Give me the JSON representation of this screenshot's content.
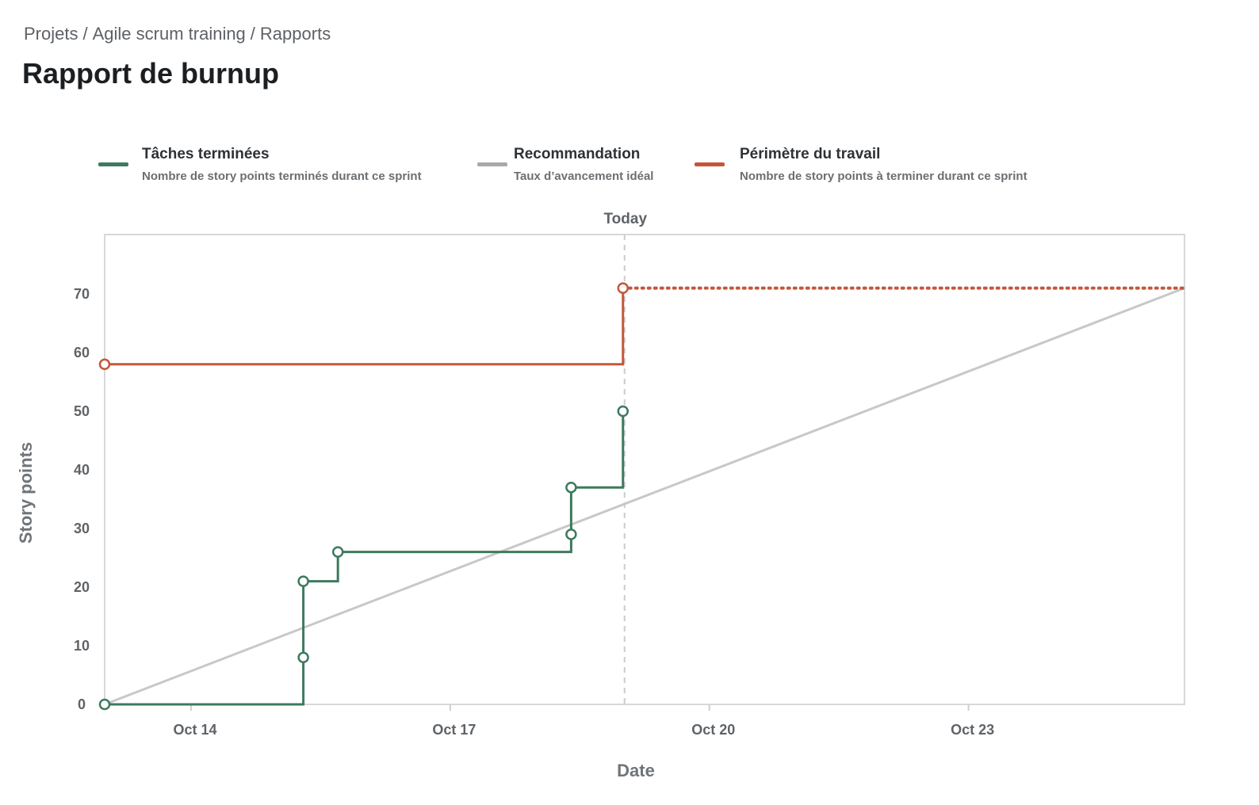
{
  "breadcrumb": {
    "items": [
      "Projets",
      "Agile scrum training",
      "Rapports"
    ],
    "separator": "/"
  },
  "page_title": "Rapport de burnup",
  "legend": [
    {
      "title": "Tâches terminées",
      "description": "Nombre de story points terminés durant ce sprint",
      "color": "#3d7a5e"
    },
    {
      "title": "Recommandation",
      "description": "Taux d’avancement idéal",
      "color": "#a9a9a9"
    },
    {
      "title": "Périmètre du travail",
      "description": "Nombre de story points à terminer durant ce sprint",
      "color": "#c4573b"
    }
  ],
  "chart_data": {
    "type": "line",
    "title": "",
    "xlabel": "Date",
    "ylabel": "Story points",
    "x_unit": "days in October",
    "xlim": [
      13,
      25.5
    ],
    "ylim": [
      0,
      80
    ],
    "yticks": [
      0,
      10,
      20,
      30,
      40,
      50,
      60,
      70
    ],
    "xticks": [
      {
        "value": 14,
        "label": "Oct 14"
      },
      {
        "value": 17,
        "label": "Oct 17"
      },
      {
        "value": 20,
        "label": "Oct 20"
      },
      {
        "value": 23,
        "label": "Oct 23"
      }
    ],
    "today": {
      "x": 19,
      "label": "Today"
    },
    "grid": false,
    "series": [
      {
        "name": "Tâches terminées",
        "style": "step",
        "color": "#3d7a5e",
        "points": [
          [
            13,
            0
          ],
          [
            15.3,
            0
          ],
          [
            15.3,
            8
          ],
          [
            15.3,
            21
          ],
          [
            15.7,
            21
          ],
          [
            15.7,
            26
          ],
          [
            18.4,
            26
          ],
          [
            18.4,
            29
          ],
          [
            18.4,
            37
          ],
          [
            19,
            37
          ],
          [
            19,
            50
          ]
        ],
        "markers": [
          [
            13,
            0
          ],
          [
            15.3,
            8
          ],
          [
            15.3,
            21
          ],
          [
            15.7,
            26
          ],
          [
            18.4,
            29
          ],
          [
            18.4,
            37
          ],
          [
            19,
            50
          ]
        ]
      },
      {
        "name": "Recommandation",
        "style": "line",
        "color": "#c8c8c8",
        "points": [
          [
            13,
            0
          ],
          [
            25.5,
            71
          ]
        ]
      },
      {
        "name": "Périmètre du travail",
        "style": "step",
        "color": "#c4573b",
        "points": [
          [
            13,
            58
          ],
          [
            19,
            58
          ],
          [
            19,
            71
          ]
        ],
        "projection": [
          [
            19,
            71
          ],
          [
            25.5,
            71
          ]
        ],
        "markers": [
          [
            13,
            58
          ],
          [
            19,
            71
          ]
        ]
      }
    ]
  }
}
